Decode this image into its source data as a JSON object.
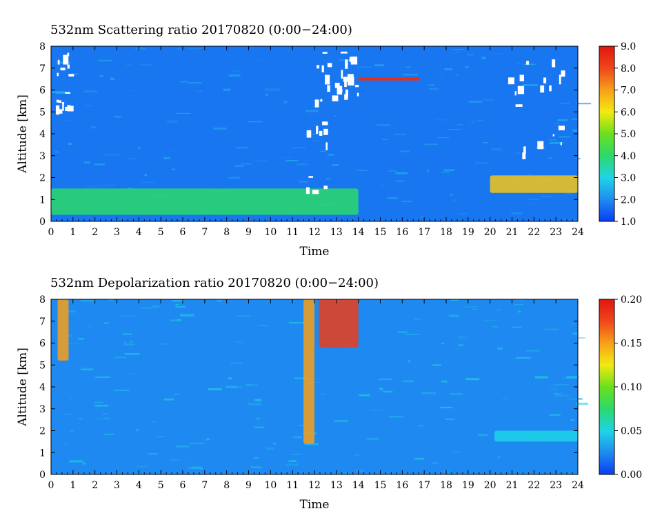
{
  "chart_data": [
    {
      "type": "heatmap",
      "title": "532nm Scattering ratio  20170820 (0:00−24:00)",
      "xlabel": "Time",
      "ylabel": "Altitude [km]",
      "xlim": [
        0,
        24
      ],
      "ylim": [
        0,
        8
      ],
      "x_ticks": [
        0,
        1,
        2,
        3,
        4,
        5,
        6,
        7,
        8,
        9,
        10,
        11,
        12,
        13,
        14,
        15,
        16,
        17,
        18,
        19,
        20,
        21,
        22,
        23,
        24
      ],
      "y_ticks": [
        0,
        1,
        2,
        3,
        4,
        5,
        6,
        7,
        8
      ],
      "colorbar": {
        "range": [
          1.0,
          9.0
        ],
        "ticks": [
          "1.0",
          "2.0",
          "3.0",
          "4.0",
          "5.0",
          "6.0",
          "7.0",
          "8.0",
          "9.0"
        ],
        "colors": [
          "#0a3cf5",
          "#1f8cf0",
          "#1fd4e6",
          "#2bd96a",
          "#6be01c",
          "#f2ea11",
          "#f7a01a",
          "#f0461b",
          "#e0170f"
        ]
      },
      "features": [
        {
          "kind": "aerosol layer",
          "t_start": 0,
          "t_end": 14,
          "alt_base_km": 0.3,
          "alt_top_km": 1.5,
          "value": 4.0
        },
        {
          "kind": "aerosol layer",
          "t_start": 20,
          "t_end": 24,
          "alt_base_km": 1.3,
          "alt_top_km": 2.1,
          "value": 6.5
        },
        {
          "kind": "thin cloud",
          "t_start": 14,
          "t_end": 16.8,
          "alt_km": 6.5,
          "value": 8.5
        },
        {
          "kind": "cloud (saturated)",
          "t_start": 0.2,
          "t_end": 0.8,
          "alt_base_km": 5.0,
          "alt_top_km": 7.9
        },
        {
          "kind": "cloud (saturated)",
          "t_start": 11.4,
          "t_end": 12.6,
          "alt_base_km": 1.2,
          "alt_top_km": 7.9
        },
        {
          "kind": "cloud (saturated)",
          "t_start": 12.8,
          "t_end": 14.0,
          "alt_base_km": 5.5,
          "alt_top_km": 7.9
        },
        {
          "kind": "cloud (saturated)",
          "t_start": 20.5,
          "t_end": 24.0,
          "alt_base_km": 3.0,
          "alt_top_km": 7.5
        }
      ]
    },
    {
      "type": "heatmap",
      "title": "532nm Depolarization ratio  20170820 (0:00−24:00)",
      "xlabel": "Time",
      "ylabel": "Altitude [km]",
      "xlim": [
        0,
        24
      ],
      "ylim": [
        0,
        8
      ],
      "x_ticks": [
        0,
        1,
        2,
        3,
        4,
        5,
        6,
        7,
        8,
        9,
        10,
        11,
        12,
        13,
        14,
        15,
        16,
        17,
        18,
        19,
        20,
        21,
        22,
        23,
        24
      ],
      "y_ticks": [
        0,
        1,
        2,
        3,
        4,
        5,
        6,
        7,
        8
      ],
      "colorbar": {
        "range": [
          0.0,
          0.2
        ],
        "ticks": [
          "0.00",
          "0.05",
          "0.10",
          "0.15",
          "0.20"
        ],
        "colors": [
          "#0a3cf5",
          "#1f8cf0",
          "#1fd4e6",
          "#2bd96a",
          "#6be01c",
          "#f2ea11",
          "#f7a01a",
          "#f0461b",
          "#e0170f"
        ]
      },
      "features": [
        {
          "kind": "cloud column",
          "t_start": 0.3,
          "t_end": 0.8,
          "alt_base_km": 5.2,
          "alt_top_km": 8.0,
          "value": 0.15
        },
        {
          "kind": "cloud column",
          "t_start": 11.5,
          "t_end": 12.0,
          "alt_base_km": 1.4,
          "alt_top_km": 8.0,
          "value": 0.15
        },
        {
          "kind": "cloud",
          "t_start": 12.2,
          "t_end": 14.0,
          "alt_base_km": 5.8,
          "alt_top_km": 8.0,
          "value": 0.18
        },
        {
          "kind": "dust layer",
          "t_start": 20.2,
          "t_end": 24.0,
          "alt_base_km": 1.5,
          "alt_top_km": 2.0,
          "value": 0.05
        }
      ]
    }
  ]
}
